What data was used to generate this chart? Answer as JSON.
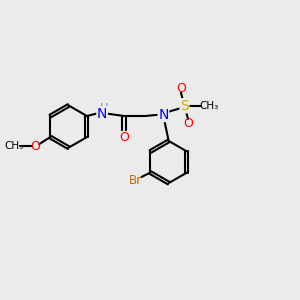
{
  "bg_color": "#ebebeb",
  "atom_colors": {
    "N": "#0000ff",
    "O": "#ff0000",
    "S": "#ccaa00",
    "Br": "#cc6600",
    "H": "#4a9a9a",
    "C": "#000000"
  }
}
